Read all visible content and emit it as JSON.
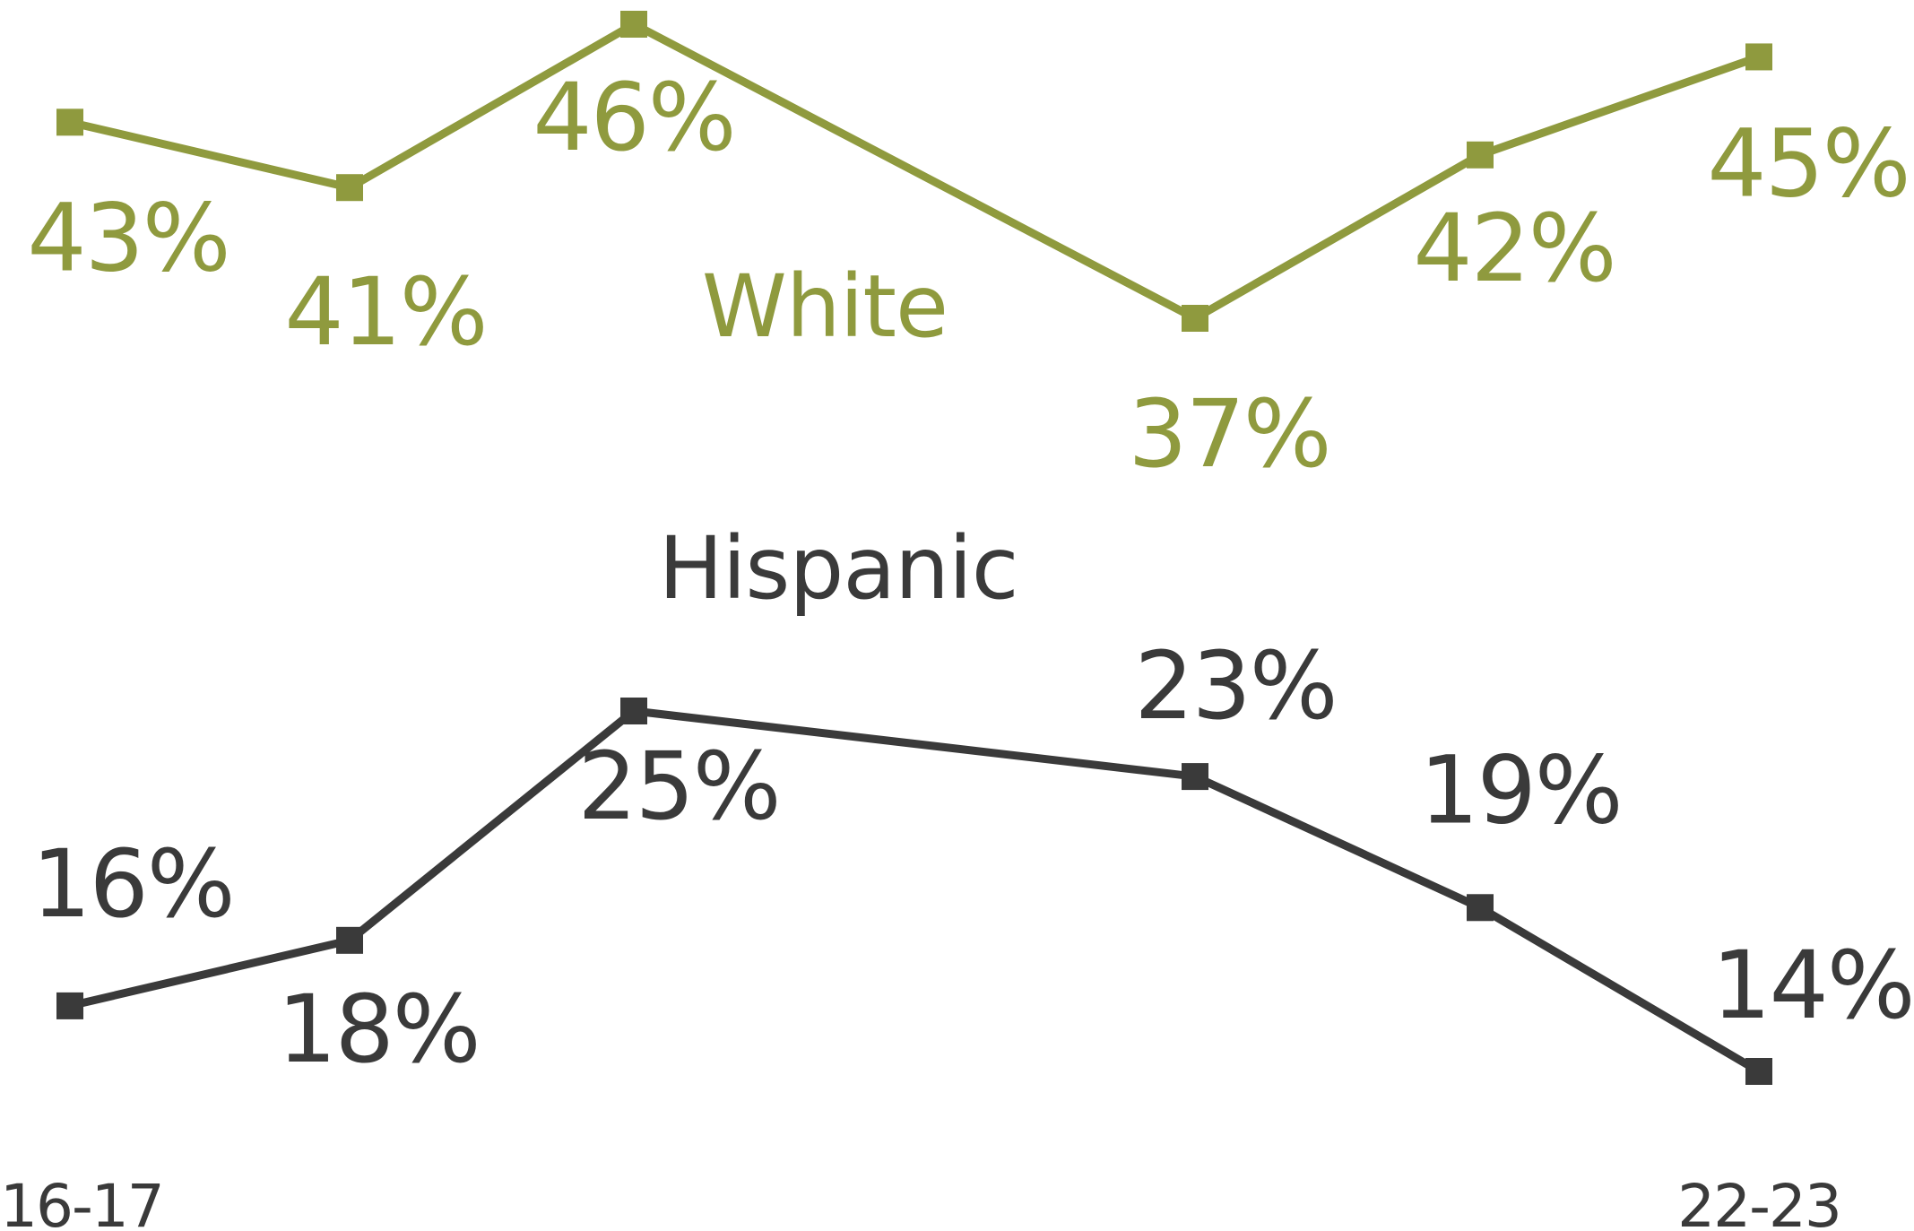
{
  "chart_data": {
    "type": "line",
    "title": "",
    "xlabel": "",
    "ylabel": "",
    "x": [
      "16-17",
      "",
      "",
      "",
      "",
      "22-23"
    ],
    "series": [
      {
        "name": "White",
        "color": "#8f9a3e",
        "values": [
          43,
          41,
          46,
          37,
          42,
          45
        ],
        "labels": [
          "43%",
          "41%",
          "46%",
          "37%",
          "42%",
          "45%"
        ]
      },
      {
        "name": "Hispanic",
        "color": "#3a3a3a",
        "values": [
          16,
          18,
          25,
          23,
          19,
          14
        ],
        "labels": [
          "16%",
          "18%",
          "25%",
          "23%",
          "19%",
          "14%"
        ]
      }
    ],
    "grid": false,
    "legend": "inline"
  }
}
